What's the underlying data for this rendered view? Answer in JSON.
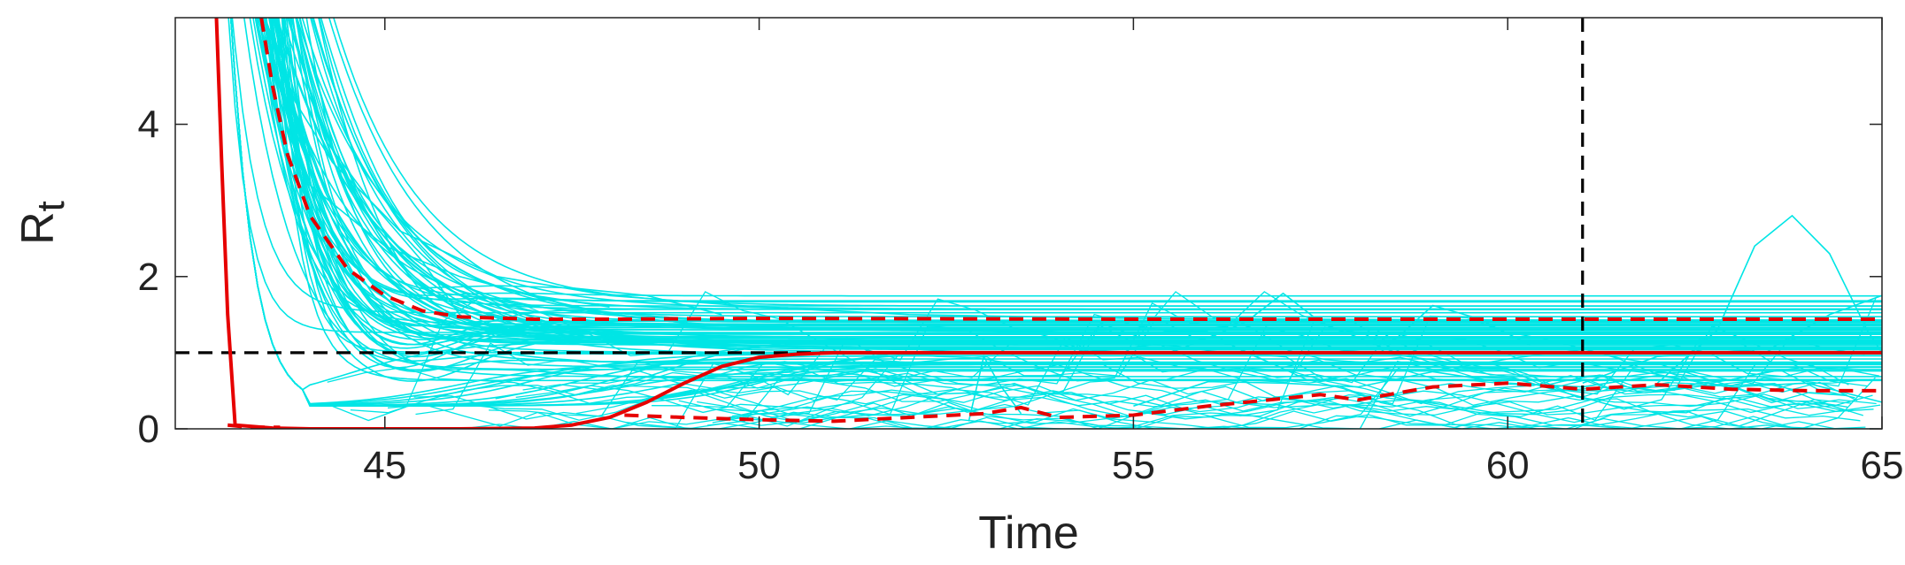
{
  "chart_data": {
    "type": "line",
    "xlabel": "Time",
    "ylabel_main": "R",
    "ylabel_sub": "t",
    "xlim": [
      42.2,
      65
    ],
    "ylim": [
      0,
      5.4
    ],
    "xticks": [
      45,
      50,
      55,
      60,
      65
    ],
    "yticks": [
      0,
      2,
      4
    ],
    "grid": false,
    "colors": {
      "ensemble": "#00e5e5",
      "highlight": "#e60000",
      "reference": "#000000",
      "axis": "#222222"
    },
    "reference_lines": {
      "horizontal_y": 1,
      "vertical_x": 61
    },
    "series": [
      {
        "style": "red-solid",
        "x": [
          42.75,
          42.82,
          42.9,
          43,
          43.5,
          44,
          45,
          46,
          47,
          47.5,
          48,
          48.5,
          49,
          49.5,
          50,
          50.5,
          51,
          52,
          55,
          60,
          65
        ],
        "y": [
          5.4,
          3.5,
          1.5,
          0.05,
          0.01,
          0.0,
          0.0,
          0.0,
          0.01,
          0.05,
          0.15,
          0.35,
          0.6,
          0.82,
          0.94,
          0.98,
          1.0,
          1.0,
          1.0,
          1.0,
          1.0
        ]
      },
      {
        "style": "red-dashed",
        "x": [
          42.9,
          43.2,
          43.6
        ],
        "y": [
          0.05,
          0.02,
          0.02
        ]
      },
      {
        "style": "red-dashed",
        "x": [
          43.35,
          43.5,
          43.7,
          44,
          44.5,
          45,
          45.5,
          46,
          47,
          48,
          50,
          55,
          60,
          65
        ],
        "y": [
          5.4,
          4.5,
          3.6,
          2.8,
          2.1,
          1.75,
          1.55,
          1.47,
          1.44,
          1.44,
          1.45,
          1.44,
          1.44,
          1.44
        ]
      },
      {
        "style": "red-dashed",
        "x": [
          48.2,
          49,
          50,
          51,
          52,
          53,
          53.5,
          54,
          55,
          56,
          57,
          57.5,
          58,
          59,
          60,
          61,
          62,
          63,
          64,
          65
        ],
        "y": [
          0.18,
          0.15,
          0.12,
          0.1,
          0.15,
          0.2,
          0.28,
          0.15,
          0.18,
          0.3,
          0.4,
          0.45,
          0.38,
          0.55,
          0.6,
          0.52,
          0.58,
          0.52,
          0.5,
          0.5
        ]
      }
    ],
    "ensemble_note": "about 100 thin cyan trajectories decaying from above 5.4 near t=43 toward 0.5–1.7, with scattered low-level curves after t=48 and a peak near 2.8 at t≈64"
  }
}
